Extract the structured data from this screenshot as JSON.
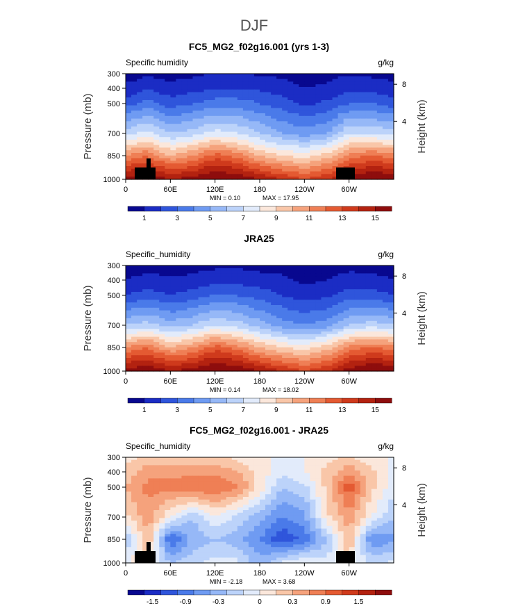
{
  "suptitle": "DJF",
  "chart_data": [
    {
      "type": "heatmap",
      "title": "FC5_MG2_f02g16.001 (yrs 1-3)",
      "variable_label": "Specific humidity",
      "units": "g/kg",
      "ylabel": "Pressure (mb)",
      "ylabel_right": "Height (km)",
      "x_ticks": [
        "0",
        "60E",
        "120E",
        "180",
        "120W",
        "60W"
      ],
      "y_ticks": [
        "300",
        "400",
        "500",
        "700",
        "850",
        "1000"
      ],
      "y_right_ticks": [
        "8",
        "4"
      ],
      "x": [
        0,
        30,
        60,
        90,
        120,
        150,
        180,
        210,
        240,
        270,
        300,
        330,
        360
      ],
      "pressure": [
        1000,
        850,
        700,
        500,
        400,
        300
      ],
      "values": [
        [
          15.5,
          16.0,
          15.0,
          15.5,
          16.5,
          16.0,
          15.0,
          14.0,
          13.0,
          14.0,
          15.5,
          16.5,
          16.0
        ],
        [
          11.0,
          12.0,
          10.0,
          11.0,
          12.5,
          11.5,
          10.0,
          9.0,
          8.5,
          9.5,
          11.5,
          12.0,
          11.5
        ],
        [
          6.5,
          7.5,
          6.0,
          6.5,
          7.5,
          7.0,
          6.0,
          5.0,
          4.5,
          5.0,
          7.0,
          7.0,
          6.5
        ],
        [
          2.5,
          3.5,
          2.5,
          3.0,
          3.5,
          3.5,
          3.0,
          2.5,
          1.8,
          2.2,
          3.0,
          3.0,
          2.5
        ],
        [
          1.2,
          1.8,
          1.3,
          1.6,
          2.0,
          2.0,
          1.8,
          1.5,
          1.0,
          1.2,
          1.8,
          1.6,
          1.3
        ],
        [
          0.5,
          0.8,
          0.6,
          0.8,
          1.0,
          1.0,
          0.9,
          0.7,
          0.4,
          0.6,
          0.9,
          0.8,
          0.6
        ]
      ],
      "min_label": "MIN =    0.10",
      "max_label": "MAX =   17.95",
      "colorbar_labels": [
        "1",
        "3",
        "5",
        "7",
        "9",
        "11",
        "13",
        "15"
      ],
      "colorbar_colors": [
        "#08088f",
        "#1b2cc4",
        "#2f55db",
        "#4a7ae9",
        "#6f9bf2",
        "#96b8f7",
        "#bcd3fa",
        "#e2ebfb",
        "#fbe7db",
        "#f9c6a8",
        "#f5a27c",
        "#ef7f55",
        "#e45a32",
        "#cf3a1c",
        "#b32210",
        "#8e0d0d"
      ]
    },
    {
      "type": "heatmap",
      "title": "JRA25",
      "variable_label": "Specific_humidity",
      "units": "g/kg",
      "ylabel": "Pressure (mb)",
      "ylabel_right": "Height (km)",
      "x_ticks": [
        "0",
        "60E",
        "120E",
        "180",
        "120W",
        "60W"
      ],
      "y_ticks": [
        "300",
        "400",
        "500",
        "700",
        "850",
        "1000"
      ],
      "y_right_ticks": [
        "8",
        "4"
      ],
      "x": [
        0,
        30,
        60,
        90,
        120,
        150,
        180,
        210,
        240,
        270,
        300,
        330,
        360
      ],
      "pressure": [
        1000,
        850,
        700,
        500,
        400,
        300
      ],
      "values": [
        [
          15.5,
          16.0,
          15.0,
          15.5,
          16.5,
          16.0,
          15.0,
          14.0,
          13.0,
          14.0,
          15.5,
          16.5,
          16.0
        ],
        [
          11.0,
          12.0,
          10.0,
          11.0,
          12.5,
          11.5,
          10.0,
          9.0,
          8.5,
          9.5,
          11.5,
          12.0,
          11.5
        ],
        [
          6.0,
          6.5,
          5.5,
          6.0,
          7.0,
          6.5,
          5.5,
          4.5,
          4.0,
          4.5,
          6.0,
          6.5,
          6.0
        ],
        [
          2.0,
          2.5,
          2.0,
          2.5,
          3.0,
          3.0,
          2.5,
          2.0,
          1.5,
          1.8,
          2.5,
          2.5,
          2.0
        ],
        [
          1.0,
          1.4,
          1.1,
          1.3,
          1.6,
          1.6,
          1.4,
          1.2,
          0.8,
          1.0,
          1.4,
          1.3,
          1.0
        ],
        [
          0.4,
          0.6,
          0.5,
          0.6,
          0.8,
          0.8,
          0.7,
          0.6,
          0.4,
          0.5,
          0.7,
          0.6,
          0.5
        ]
      ],
      "min_label": "MIN =    0.14",
      "max_label": "MAX =   18.02",
      "colorbar_labels": [
        "1",
        "3",
        "5",
        "7",
        "9",
        "11",
        "13",
        "15"
      ],
      "colorbar_colors": [
        "#08088f",
        "#1b2cc4",
        "#2f55db",
        "#4a7ae9",
        "#6f9bf2",
        "#96b8f7",
        "#bcd3fa",
        "#e2ebfb",
        "#fbe7db",
        "#f9c6a8",
        "#f5a27c",
        "#ef7f55",
        "#e45a32",
        "#cf3a1c",
        "#b32210",
        "#8e0d0d"
      ]
    },
    {
      "type": "heatmap",
      "title": "FC5_MG2_f02g16.001 - JRA25",
      "variable_label": "Specific_humidity",
      "units": "g/kg",
      "ylabel": "Pressure (mb)",
      "ylabel_right": "Height (km)",
      "x_ticks": [
        "0",
        "60E",
        "120E",
        "180",
        "120W",
        "60W"
      ],
      "y_ticks": [
        "300",
        "400",
        "500",
        "700",
        "850",
        "1000"
      ],
      "y_right_ticks": [
        "8",
        "4"
      ],
      "x": [
        0,
        30,
        60,
        90,
        120,
        150,
        180,
        210,
        240,
        270,
        300,
        330,
        360
      ],
      "pressure": [
        1000,
        850,
        700,
        500,
        400,
        300
      ],
      "values": [
        [
          0.0,
          0.2,
          -0.6,
          -0.4,
          -0.2,
          -0.2,
          -0.8,
          -0.2,
          0.0,
          -0.2,
          0.2,
          -0.4,
          -0.2
        ],
        [
          -0.6,
          0.6,
          -1.6,
          -0.8,
          -0.6,
          -0.8,
          -1.2,
          -1.8,
          -1.4,
          -0.6,
          0.6,
          -1.2,
          -1.0
        ],
        [
          0.2,
          0.8,
          0.0,
          -0.6,
          0.0,
          -0.4,
          -0.8,
          -1.2,
          -1.0,
          0.2,
          0.8,
          0.0,
          -0.6
        ],
        [
          0.6,
          1.0,
          1.0,
          1.2,
          1.2,
          1.0,
          0.2,
          -0.6,
          -0.4,
          0.4,
          1.4,
          0.4,
          -0.2
        ],
        [
          0.4,
          0.8,
          0.8,
          0.8,
          0.8,
          0.6,
          0.2,
          -0.2,
          0.0,
          0.4,
          0.8,
          0.4,
          -0.2
        ],
        [
          0.2,
          0.4,
          0.4,
          0.4,
          0.4,
          0.2,
          0.0,
          0.0,
          0.0,
          0.2,
          0.4,
          0.0,
          0.0
        ]
      ],
      "min_label": "MIN =   -2.18",
      "max_label": "MAX =    3.68",
      "colorbar_labels": [
        "-1.5",
        "-0.9",
        "-0.3",
        "0",
        "0.3",
        "0.9",
        "1.5"
      ],
      "colorbar_colors": [
        "#08088f",
        "#1b2cc4",
        "#2f55db",
        "#4a7ae9",
        "#6f9bf2",
        "#96b8f7",
        "#bcd3fa",
        "#e2ebfb",
        "#fbe7db",
        "#f9c6a8",
        "#f5a27c",
        "#ef7f55",
        "#e45a32",
        "#cf3a1c",
        "#b32210",
        "#8e0d0d"
      ]
    }
  ]
}
